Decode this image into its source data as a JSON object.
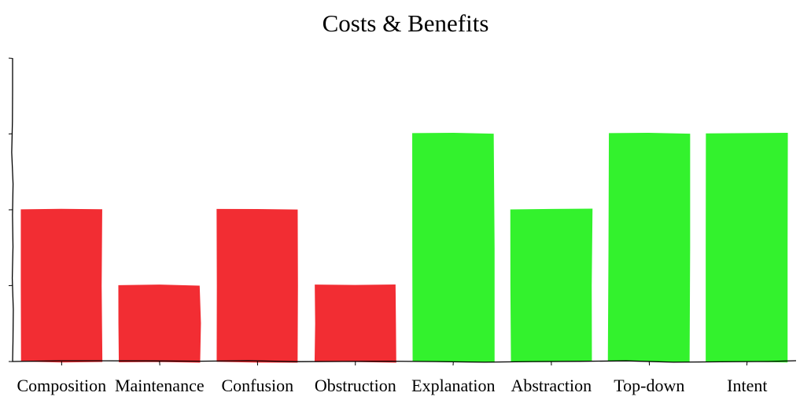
{
  "chart_data": {
    "type": "bar",
    "title": "Costs & Benefits",
    "xlabel": "",
    "ylabel": "",
    "categories": [
      "Composition",
      "Maintenance",
      "Confusion",
      "Obstruction",
      "Explanation",
      "Abstraction",
      "Top-down",
      "Intent"
    ],
    "values": [
      2,
      1,
      2,
      1,
      3,
      2,
      3,
      3
    ],
    "bar_colors": [
      "#f22d33",
      "#f22d33",
      "#f22d33",
      "#f22d33",
      "#33f22d",
      "#33f22d",
      "#33f22d",
      "#33f22d"
    ],
    "ylim": [
      0,
      4
    ],
    "grid": false,
    "legend": "none",
    "style": "hand-drawn"
  }
}
